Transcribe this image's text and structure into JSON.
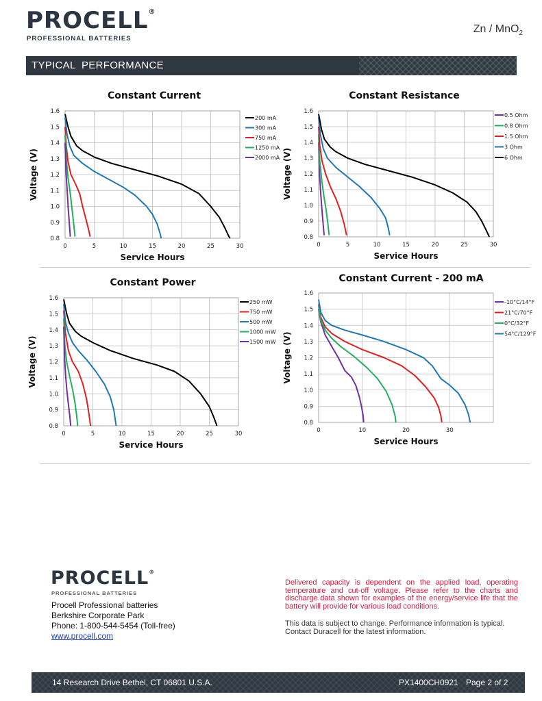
{
  "header": {
    "brand": "PROCELL",
    "registered": "®",
    "tagline": "PROFESSIONAL BATTERIES",
    "chemistry": "Zn / MnO",
    "chemistry_sub": "2",
    "section_title": "TYPICAL  PERFORMANCE"
  },
  "colors": {
    "band": "#2f3841",
    "black_series": "#000000",
    "blue_series": "#1f77b4",
    "red_series": "#e02020",
    "green_series": "#20b060",
    "purple_series": "#7030a0",
    "note_red": "#d6173f"
  },
  "chart_data": [
    {
      "type": "line",
      "title": "Constant Current",
      "xlabel": "Service Hours",
      "ylabel": "Voltage (V)",
      "xlim": [
        0,
        30
      ],
      "ylim": [
        0.8,
        1.6
      ],
      "xticks": [
        "0",
        "5",
        "10",
        "15",
        "20",
        "25",
        "30"
      ],
      "yticks": [
        "0.8",
        "0.9",
        "1.0",
        "1.1",
        "1.2",
        "1.3",
        "1.4",
        "1.5",
        "1.6"
      ],
      "grid": true,
      "legend": "right",
      "series": [
        {
          "name": "200 mA",
          "color": "#000000",
          "x": [
            0,
            0.5,
            1,
            2,
            3,
            5,
            8,
            12,
            16,
            20,
            23,
            25,
            26.5,
            27.5,
            28,
            28.3
          ],
          "y": [
            1.58,
            1.5,
            1.44,
            1.38,
            1.35,
            1.31,
            1.27,
            1.23,
            1.19,
            1.14,
            1.08,
            1.0,
            0.93,
            0.86,
            0.82,
            0.8
          ]
        },
        {
          "name": "300 mA",
          "color": "#1f77b4",
          "x": [
            0,
            0.3,
            0.8,
            1.5,
            3,
            5,
            8,
            10,
            12,
            14,
            15,
            15.8,
            16.3,
            16.5
          ],
          "y": [
            1.56,
            1.46,
            1.38,
            1.32,
            1.27,
            1.22,
            1.16,
            1.12,
            1.07,
            1.0,
            0.95,
            0.89,
            0.83,
            0.8
          ]
        },
        {
          "name": "750 mA",
          "color": "#e02020",
          "x": [
            0,
            0.2,
            0.5,
            1,
            1.8,
            2.5,
            3,
            3.5,
            4,
            4.3
          ],
          "y": [
            1.5,
            1.38,
            1.28,
            1.2,
            1.14,
            1.08,
            1.0,
            0.93,
            0.86,
            0.81
          ]
        },
        {
          "name": "1250 mA",
          "color": "#20b060",
          "x": [
            0,
            0.2,
            0.5,
            0.9,
            1.2,
            1.5,
            1.7
          ],
          "y": [
            1.45,
            1.3,
            1.18,
            1.08,
            0.98,
            0.88,
            0.81
          ]
        },
        {
          "name": "2000 mA",
          "color": "#7030a0",
          "x": [
            0,
            0.15,
            0.35,
            0.55,
            0.75,
            0.9
          ],
          "y": [
            1.4,
            1.22,
            1.1,
            0.98,
            0.88,
            0.81
          ]
        }
      ]
    },
    {
      "type": "line",
      "title": "Constant Resistance",
      "xlabel": "Service Hours",
      "ylabel": "Voltage (V)",
      "xlim": [
        0,
        30
      ],
      "ylim": [
        0.8,
        1.6
      ],
      "xticks": [
        "0",
        "5",
        "10",
        "15",
        "20",
        "25",
        "30"
      ],
      "yticks": [
        "0.8",
        "0.9",
        "1.0",
        "1.1",
        "1.2",
        "1.3",
        "1.4",
        "1.5",
        "1.6"
      ],
      "grid": true,
      "legend": "right",
      "series": [
        {
          "name": "0.5 Ohm",
          "color": "#7030a0",
          "x": [
            0,
            0.15,
            0.35,
            0.6,
            0.8,
            0.95
          ],
          "y": [
            1.4,
            1.2,
            1.08,
            0.96,
            0.87,
            0.81
          ]
        },
        {
          "name": "0.8 Ohm",
          "color": "#20b060",
          "x": [
            0,
            0.2,
            0.5,
            0.9,
            1.3,
            1.6,
            1.8
          ],
          "y": [
            1.45,
            1.28,
            1.17,
            1.06,
            0.97,
            0.88,
            0.81
          ]
        },
        {
          "name": "1.5 Ohm",
          "color": "#e02020",
          "x": [
            0,
            0.2,
            0.6,
            1.2,
            2,
            3,
            3.8,
            4.4,
            4.8
          ],
          "y": [
            1.5,
            1.38,
            1.28,
            1.2,
            1.12,
            1.04,
            0.96,
            0.88,
            0.81
          ]
        },
        {
          "name": "3 Ohm",
          "color": "#1f77b4",
          "x": [
            0,
            0.3,
            0.8,
            1.5,
            3,
            5,
            7,
            9,
            10.5,
            11.5,
            12,
            12.2
          ],
          "y": [
            1.56,
            1.45,
            1.36,
            1.3,
            1.24,
            1.18,
            1.12,
            1.05,
            0.98,
            0.92,
            0.85,
            0.81
          ]
        },
        {
          "name": "6 Ohm",
          "color": "#000000",
          "x": [
            0,
            0.5,
            1,
            2,
            3,
            5,
            8,
            12,
            16,
            20,
            23,
            25.5,
            27,
            28,
            28.8,
            29.3
          ],
          "y": [
            1.58,
            1.48,
            1.42,
            1.37,
            1.34,
            1.3,
            1.26,
            1.22,
            1.18,
            1.13,
            1.08,
            1.02,
            0.96,
            0.9,
            0.84,
            0.8
          ]
        }
      ]
    },
    {
      "type": "line",
      "title": "Constant Power",
      "xlabel": "Service Hours",
      "ylabel": "Voltage (V)",
      "xlim": [
        0,
        30
      ],
      "ylim": [
        0.8,
        1.6
      ],
      "xticks": [
        "0",
        "5",
        "10",
        "15",
        "20",
        "25",
        "30"
      ],
      "yticks": [
        "0.8",
        "0.9",
        "1.0",
        "1.1",
        "1.2",
        "1.3",
        "1.4",
        "1.5",
        "1.6"
      ],
      "grid": true,
      "legend": "right",
      "series": [
        {
          "name": "250 mW",
          "color": "#000000",
          "x": [
            0,
            0.5,
            1,
            2,
            3,
            5,
            8,
            12,
            16,
            19,
            21.5,
            23.5,
            25,
            25.8,
            26.3
          ],
          "y": [
            1.59,
            1.5,
            1.44,
            1.39,
            1.36,
            1.32,
            1.27,
            1.22,
            1.18,
            1.14,
            1.08,
            1.0,
            0.92,
            0.85,
            0.8
          ]
        },
        {
          "name": "750 mW",
          "color": "#e02020",
          "x": [
            0,
            0.3,
            0.8,
            1.5,
            2.5,
            3.3,
            3.9,
            4.3,
            4.6
          ],
          "y": [
            1.52,
            1.38,
            1.27,
            1.2,
            1.14,
            1.06,
            0.97,
            0.88,
            0.8
          ]
        },
        {
          "name": "500 mW",
          "color": "#1f77b4",
          "x": [
            0,
            0.3,
            0.8,
            1.5,
            2.5,
            4,
            5.5,
            7,
            8,
            8.6,
            9
          ],
          "y": [
            1.56,
            1.45,
            1.38,
            1.32,
            1.27,
            1.21,
            1.14,
            1.06,
            0.98,
            0.9,
            0.8
          ]
        },
        {
          "name": "1000 mW",
          "color": "#20b060",
          "x": [
            0,
            0.2,
            0.5,
            1,
            1.5,
            1.9,
            2.2,
            2.4
          ],
          "y": [
            1.47,
            1.3,
            1.2,
            1.11,
            1.03,
            0.95,
            0.87,
            0.8
          ]
        },
        {
          "name": "1500 mW",
          "color": "#7030a0",
          "x": [
            0,
            0.15,
            0.35,
            0.6,
            0.85,
            1.05,
            1.2
          ],
          "y": [
            1.42,
            1.22,
            1.1,
            1.0,
            0.92,
            0.86,
            0.8
          ]
        }
      ]
    },
    {
      "type": "line",
      "title": "Constant Current - 200 mA",
      "xlabel": "Service Hours",
      "ylabel": "Voltage (V)",
      "xlim": [
        0,
        40
      ],
      "ylim": [
        0.8,
        1.6
      ],
      "xticks": [
        "0",
        "10",
        "20",
        "30"
      ],
      "yticks": [
        "0.8",
        "0.9",
        "1.0",
        "1.1",
        "1.2",
        "1.3",
        "1.4",
        "1.5",
        "1.6"
      ],
      "grid": true,
      "legend": "right",
      "series": [
        {
          "name": "-10°C/14°F",
          "color": "#7030a0",
          "x": [
            0,
            0.5,
            1.5,
            3,
            4.5,
            6,
            7.5,
            8.5,
            9.3,
            9.8,
            10.2,
            10.3
          ],
          "y": [
            1.5,
            1.42,
            1.34,
            1.27,
            1.2,
            1.12,
            1.08,
            1.03,
            0.96,
            0.9,
            0.84,
            0.8
          ]
        },
        {
          "name": "21°C/70°F",
          "color": "#e02020",
          "x": [
            0,
            0.5,
            1.5,
            3,
            6,
            10,
            15,
            19,
            22,
            24.5,
            26.5,
            27.5,
            28,
            28.2
          ],
          "y": [
            1.53,
            1.45,
            1.39,
            1.35,
            1.3,
            1.25,
            1.2,
            1.15,
            1.09,
            1.02,
            0.95,
            0.89,
            0.84,
            0.8
          ]
        },
        {
          "name": "0°C/32°F",
          "color": "#20b060",
          "x": [
            0,
            0.5,
            1.5,
            3,
            5,
            8,
            11,
            13.5,
            15.5,
            16.8,
            17.5,
            17.7
          ],
          "y": [
            1.52,
            1.43,
            1.37,
            1.32,
            1.27,
            1.21,
            1.14,
            1.07,
            0.99,
            0.91,
            0.84,
            0.8
          ]
        },
        {
          "name": "54°C/129°F",
          "color": "#1f77b4",
          "x": [
            0,
            0.5,
            1.5,
            3,
            6,
            10,
            15,
            20,
            24,
            26,
            28,
            30,
            32,
            33.5,
            34.3,
            34.7
          ],
          "y": [
            1.56,
            1.48,
            1.43,
            1.4,
            1.37,
            1.34,
            1.3,
            1.25,
            1.2,
            1.15,
            1.07,
            1.03,
            0.98,
            0.91,
            0.85,
            0.8
          ]
        }
      ]
    }
  ],
  "footer": {
    "brand": "PROCELL",
    "registered": "®",
    "tagline": "PROFESSIONAL BATTERIES",
    "address_lines": [
      "Procell Professional batteries",
      "Berkshire Corporate Park",
      "Phone: 1-800-544-5454 (Toll-free)"
    ],
    "website": "www.procell.com",
    "note_red": "Delivered capacity is dependent on the applied load, operating temperature and cut-off voltage. Please refer to the charts and discharge data shown for examples of the energy/service life  that the battery will provide for various load conditions.",
    "note_gray": "This data is subject to change. Performance information is typical. Contact Duracell for the latest information.",
    "street": "14 Research Drive Bethel, CT 06801 U.S.A.",
    "doc_code": "PX1400CH0921",
    "page": "Page 2 of 2"
  }
}
